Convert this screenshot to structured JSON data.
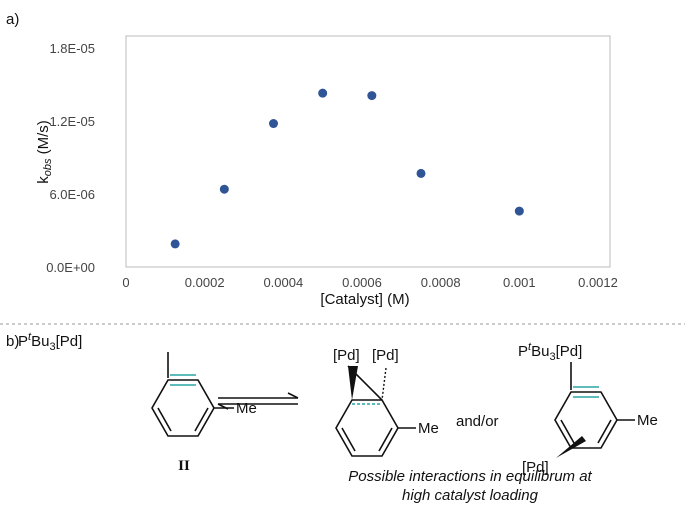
{
  "panel_labels": [
    "a)",
    "b)"
  ],
  "chart_data": {
    "type": "scatter",
    "x": [
      0.000125,
      0.00025,
      0.000375,
      0.0005,
      0.000625,
      0.00075,
      0.001
    ],
    "values": [
      1.9e-06,
      6.4e-06,
      1.18e-05,
      1.43e-05,
      1.41e-05,
      7.7e-06,
      4.6e-06
    ],
    "color": "#2f5597",
    "x_label": "[Catalyst] (M)",
    "y_label": [
      "k",
      "obs",
      " (M/s)"
    ],
    "xlim": [
      0,
      0.0012
    ],
    "xticks": [
      0,
      0.0002,
      0.0004,
      0.0006,
      0.0008,
      0.001,
      0.0012
    ],
    "ylim": [
      0,
      1.9e-05
    ],
    "yticks": [
      {
        "value": 0,
        "label": "0.0E+00"
      },
      {
        "value": 6e-06,
        "label": "6.0E-06"
      },
      {
        "value": 1.2e-05,
        "label": "1.2E-05"
      },
      {
        "value": 1.8e-05,
        "label": "1.8E-05"
      }
    ]
  },
  "scheme": {
    "left": {
      "ligand": [
        "P",
        "t",
        "Bu",
        "3",
        "[Pd]"
      ],
      "substituent": "Me",
      "compound": "II"
    },
    "middle": {
      "pd_left": "[Pd]",
      "pd_right": "[Pd]",
      "substituent": "Me"
    },
    "connector": "and/or",
    "right": {
      "ligand": [
        "P",
        "t",
        "Bu",
        "3",
        "[Pd]"
      ],
      "substituent": "Me",
      "pd": "[Pd]"
    },
    "caption": [
      "Possible interactions in equilibrum at",
      "high catalyst loading"
    ]
  }
}
